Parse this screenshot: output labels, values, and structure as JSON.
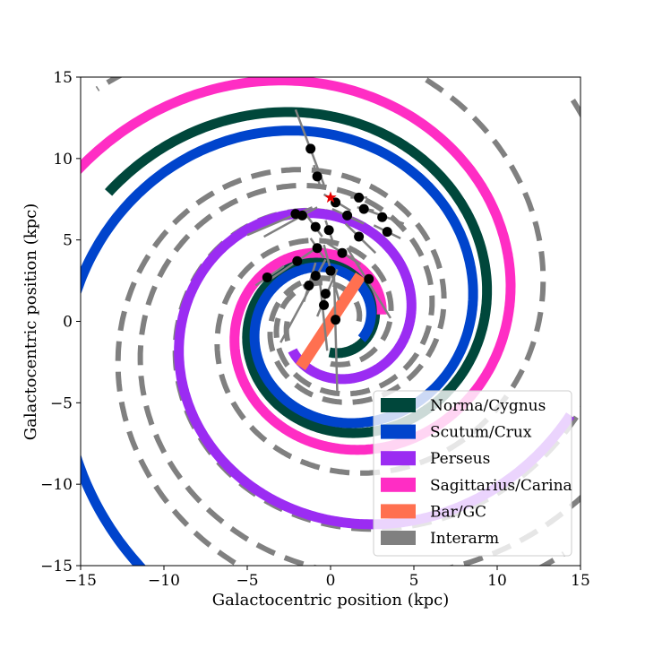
{
  "chart_data": {
    "type": "scatter",
    "xlabel": "Galactocentric position (kpc)",
    "ylabel": "Galactocentric position (kpc)",
    "xlim": [
      -15,
      15
    ],
    "ylim": [
      -15,
      15
    ],
    "xticks": [
      -15,
      -10,
      -5,
      0,
      5,
      10,
      15
    ],
    "yticks": [
      -15,
      -10,
      -5,
      0,
      5,
      10,
      15
    ],
    "xtick_labels": [
      "−15",
      "−10",
      "−5",
      "0",
      "5",
      "10",
      "15"
    ],
    "ytick_labels": [
      "−15",
      "−10",
      "−5",
      "0",
      "5",
      "10",
      "15"
    ],
    "grid": false,
    "legend_position": "lower-right",
    "legend": [
      {
        "label": "Norma/Cygnus",
        "color": "#00473b"
      },
      {
        "label": "Scutum/Crux",
        "color": "#0044cc"
      },
      {
        "label": "Perseus",
        "color": "#9b2cf2"
      },
      {
        "label": "Sagittarius/Carina",
        "color": "#ff2dc4"
      },
      {
        "label": "Bar/GC",
        "color": "#ff7050"
      },
      {
        "label": "Interarm",
        "color": "#808080"
      }
    ],
    "spiral_model": {
      "pitch_tan": 0.2,
      "arms": [
        {
          "name": "Norma/Cygnus",
          "color": "#00473b",
          "r_start": 1.9,
          "r_end": 15.5,
          "angle_start_deg": 268
        },
        {
          "name": "Scutum/Crux",
          "color": "#0044cc",
          "r_start": 2.15,
          "r_end": 22.0,
          "angle_start_deg": 330
        },
        {
          "name": "Perseus",
          "color": "#9b2cf2",
          "r_start": 2.9,
          "r_end": 15.5,
          "angle_start_deg": 218
        },
        {
          "name": "Sagittarius/Carina",
          "color": "#ff2dc4",
          "r_start": 3.1,
          "r_end": 20.0,
          "angle_start_deg": 8
        }
      ],
      "interarms": [
        {
          "r_start": 1.7,
          "r_end": 20.0,
          "angle_start_deg": 0
        },
        {
          "r_start": 2.6,
          "r_end": 20.0,
          "angle_start_deg": 270
        },
        {
          "r_start": 2.6,
          "r_end": 20.0,
          "angle_start_deg": 90
        },
        {
          "r_start": 2.6,
          "r_end": 20.0,
          "angle_start_deg": 180
        }
      ]
    },
    "bar": {
      "color": "#ff7050",
      "x1": -1.8,
      "y1": -2.8,
      "x2": 1.8,
      "y2": 2.8
    },
    "sun": {
      "x": 0,
      "y": 7.6,
      "color": "#e60000"
    },
    "sources": [
      {
        "x": -1.2,
        "y": 10.6,
        "line": [
          [
            -2.1,
            13.0
          ],
          [
            -0.4,
            8.4
          ]
        ]
      },
      {
        "x": -0.8,
        "y": 8.9,
        "line": [
          [
            -1.0,
            9.6
          ],
          [
            -0.6,
            8.2
          ]
        ]
      },
      {
        "x": 1.7,
        "y": 7.6,
        "line": [
          [
            1.2,
            7.6
          ],
          [
            2.2,
            7.6
          ]
        ]
      },
      {
        "x": 2.0,
        "y": 6.9,
        "line": [
          [
            1.6,
            7.0
          ],
          [
            2.6,
            6.8
          ]
        ]
      },
      {
        "x": 3.1,
        "y": 6.4,
        "line": [
          [
            2.0,
            6.9
          ],
          [
            4.4,
            6.0
          ]
        ]
      },
      {
        "x": 3.4,
        "y": 5.5,
        "line": [
          [
            2.6,
            5.9
          ],
          [
            4.2,
            5.1
          ]
        ]
      },
      {
        "x": 0.3,
        "y": 7.3,
        "line": [
          [
            -0.4,
            7.8
          ],
          [
            1.2,
            6.8
          ]
        ]
      },
      {
        "x": 1.0,
        "y": 6.5,
        "line": [
          [
            0.1,
            6.9
          ],
          [
            2.0,
            6.0
          ]
        ]
      },
      {
        "x": -2.1,
        "y": 6.6,
        "line": [
          [
            -5.0,
            5.3
          ],
          [
            -1.1,
            7.0
          ]
        ]
      },
      {
        "x": -1.7,
        "y": 6.5,
        "line": [
          [
            -4.0,
            5.2
          ],
          [
            -0.8,
            7.0
          ]
        ]
      },
      {
        "x": -0.9,
        "y": 5.8,
        "line": [
          [
            -1.5,
            6.6
          ],
          [
            -0.5,
            5.2
          ]
        ]
      },
      {
        "x": -0.1,
        "y": 5.6,
        "line": [
          [
            -0.3,
            6.2
          ],
          [
            0.1,
            5.0
          ]
        ]
      },
      {
        "x": 1.7,
        "y": 5.2,
        "line": [
          [
            0.9,
            6.0
          ],
          [
            2.7,
            4.2
          ]
        ]
      },
      {
        "x": -0.8,
        "y": 4.5,
        "line": [
          [
            -1.2,
            5.1
          ],
          [
            -0.4,
            3.9
          ]
        ]
      },
      {
        "x": 0.7,
        "y": 4.2,
        "line": [
          [
            -0.2,
            4.8
          ],
          [
            1.8,
            3.5
          ]
        ]
      },
      {
        "x": -2.0,
        "y": 3.7,
        "line": [
          [
            -3.6,
            2.6
          ],
          [
            -0.7,
            4.6
          ]
        ]
      },
      {
        "x": -3.8,
        "y": 2.7,
        "line": [
          [
            -4.5,
            2.2
          ],
          [
            -2.8,
            3.4
          ]
        ]
      },
      {
        "x": 0.0,
        "y": 3.1,
        "line": [
          [
            -0.4,
            4.7
          ],
          [
            0.5,
            1.3
          ]
        ]
      },
      {
        "x": 2.3,
        "y": 2.6,
        "line": [
          [
            1.0,
            4.5
          ],
          [
            3.6,
            0.2
          ]
        ]
      },
      {
        "x": -0.9,
        "y": 2.8,
        "line": [
          [
            -0.3,
            3.8
          ],
          [
            -3.0,
            -1.3
          ]
        ]
      },
      {
        "x": -1.3,
        "y": 2.2,
        "line": [
          [
            -1.6,
            1.2
          ],
          [
            -0.9,
            3.6
          ]
        ]
      },
      {
        "x": -0.3,
        "y": 1.7,
        "line": [
          [
            -0.8,
            0.3
          ],
          [
            0.4,
            3.2
          ]
        ]
      },
      {
        "x": -0.4,
        "y": 1.0,
        "line": [
          [
            -0.2,
            -1.8
          ],
          [
            -0.7,
            3.0
          ]
        ]
      },
      {
        "x": 0.3,
        "y": 0.1,
        "line": [
          [
            0.4,
            -4.3
          ],
          [
            0.2,
            3.2
          ]
        ]
      }
    ]
  }
}
